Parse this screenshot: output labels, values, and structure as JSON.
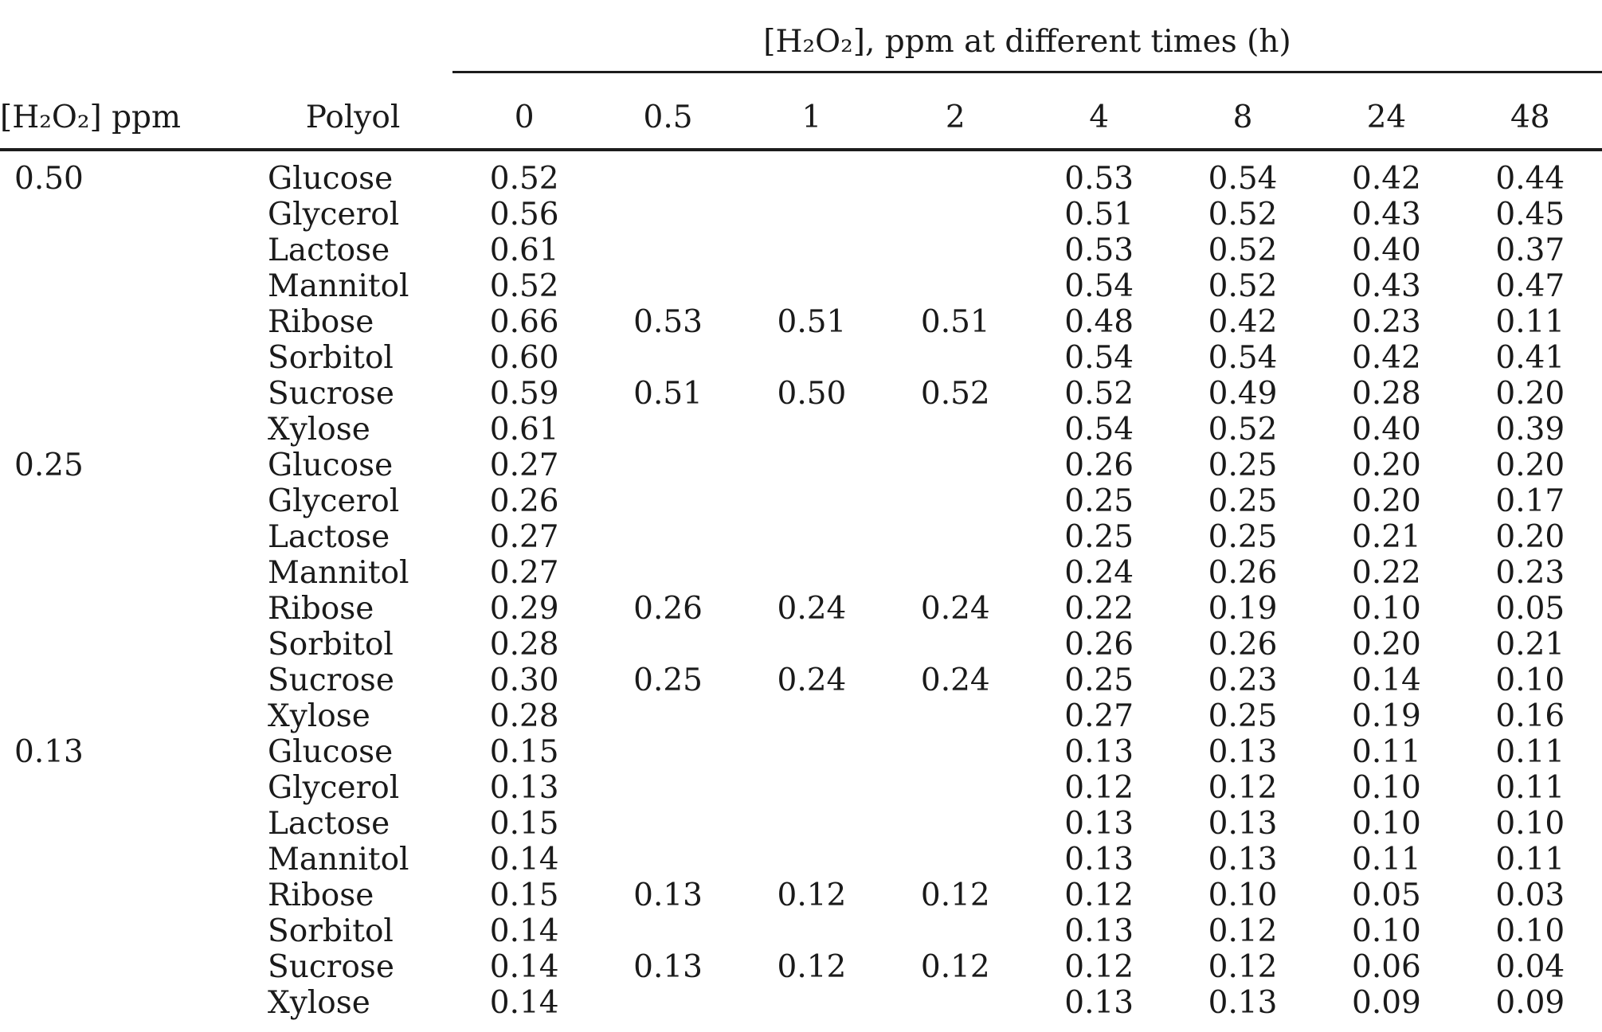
{
  "table": {
    "span_header": "[H₂O₂], ppm at different times (h)",
    "col_headers": {
      "concentration": "[H₂O₂] ppm",
      "polyol": "Polyol"
    },
    "time_headers": [
      "0",
      "0.5",
      "1",
      "2",
      "4",
      "8",
      "24",
      "48"
    ],
    "groups": [
      {
        "h2o2_ppm": "0.50",
        "rows": [
          {
            "polyol": "Glucose",
            "values": [
              "0.52",
              "",
              "",
              "",
              "0.53",
              "0.54",
              "0.42",
              "0.44"
            ]
          },
          {
            "polyol": "Glycerol",
            "values": [
              "0.56",
              "",
              "",
              "",
              "0.51",
              "0.52",
              "0.43",
              "0.45"
            ]
          },
          {
            "polyol": "Lactose",
            "values": [
              "0.61",
              "",
              "",
              "",
              "0.53",
              "0.52",
              "0.40",
              "0.37"
            ]
          },
          {
            "polyol": "Mannitol",
            "values": [
              "0.52",
              "",
              "",
              "",
              "0.54",
              "0.52",
              "0.43",
              "0.47"
            ]
          },
          {
            "polyol": "Ribose",
            "values": [
              "0.66",
              "0.53",
              "0.51",
              "0.51",
              "0.48",
              "0.42",
              "0.23",
              "0.11"
            ]
          },
          {
            "polyol": "Sorbitol",
            "values": [
              "0.60",
              "",
              "",
              "",
              "0.54",
              "0.54",
              "0.42",
              "0.41"
            ]
          },
          {
            "polyol": "Sucrose",
            "values": [
              "0.59",
              "0.51",
              "0.50",
              "0.52",
              "0.52",
              "0.49",
              "0.28",
              "0.20"
            ]
          },
          {
            "polyol": "Xylose",
            "values": [
              "0.61",
              "",
              "",
              "",
              "0.54",
              "0.52",
              "0.40",
              "0.39"
            ]
          }
        ]
      },
      {
        "h2o2_ppm": "0.25",
        "rows": [
          {
            "polyol": "Glucose",
            "values": [
              "0.27",
              "",
              "",
              "",
              "0.26",
              "0.25",
              "0.20",
              "0.20"
            ]
          },
          {
            "polyol": "Glycerol",
            "values": [
              "0.26",
              "",
              "",
              "",
              "0.25",
              "0.25",
              "0.20",
              "0.17"
            ]
          },
          {
            "polyol": "Lactose",
            "values": [
              "0.27",
              "",
              "",
              "",
              "0.25",
              "0.25",
              "0.21",
              "0.20"
            ]
          },
          {
            "polyol": "Mannitol",
            "values": [
              "0.27",
              "",
              "",
              "",
              "0.24",
              "0.26",
              "0.22",
              "0.23"
            ]
          },
          {
            "polyol": "Ribose",
            "values": [
              "0.29",
              "0.26",
              "0.24",
              "0.24",
              "0.22",
              "0.19",
              "0.10",
              "0.05"
            ]
          },
          {
            "polyol": "Sorbitol",
            "values": [
              "0.28",
              "",
              "",
              "",
              "0.26",
              "0.26",
              "0.20",
              "0.21"
            ]
          },
          {
            "polyol": "Sucrose",
            "values": [
              "0.30",
              "0.25",
              "0.24",
              "0.24",
              "0.25",
              "0.23",
              "0.14",
              "0.10"
            ]
          },
          {
            "polyol": "Xylose",
            "values": [
              "0.28",
              "",
              "",
              "",
              "0.27",
              "0.25",
              "0.19",
              "0.16"
            ]
          }
        ]
      },
      {
        "h2o2_ppm": "0.13",
        "rows": [
          {
            "polyol": "Glucose",
            "values": [
              "0.15",
              "",
              "",
              "",
              "0.13",
              "0.13",
              "0.11",
              "0.11"
            ]
          },
          {
            "polyol": "Glycerol",
            "values": [
              "0.13",
              "",
              "",
              "",
              "0.12",
              "0.12",
              "0.10",
              "0.11"
            ]
          },
          {
            "polyol": "Lactose",
            "values": [
              "0.15",
              "",
              "",
              "",
              "0.13",
              "0.13",
              "0.10",
              "0.10"
            ]
          },
          {
            "polyol": "Mannitol",
            "values": [
              "0.14",
              "",
              "",
              "",
              "0.13",
              "0.13",
              "0.11",
              "0.11"
            ]
          },
          {
            "polyol": "Ribose",
            "values": [
              "0.15",
              "0.13",
              "0.12",
              "0.12",
              "0.12",
              "0.10",
              "0.05",
              "0.03"
            ]
          },
          {
            "polyol": "Sorbitol",
            "values": [
              "0.14",
              "",
              "",
              "",
              "0.13",
              "0.12",
              "0.10",
              "0.10"
            ]
          },
          {
            "polyol": "Sucrose",
            "values": [
              "0.14",
              "0.13",
              "0.12",
              "0.12",
              "0.12",
              "0.12",
              "0.06",
              "0.04"
            ]
          },
          {
            "polyol": "Xylose",
            "values": [
              "0.14",
              "",
              "",
              "",
              "0.13",
              "0.13",
              "0.09",
              "0.09"
            ]
          }
        ]
      }
    ],
    "colors": {
      "text": "#1a1a1a",
      "rule": "#1c1c1c",
      "background": "#ffffff"
    }
  }
}
